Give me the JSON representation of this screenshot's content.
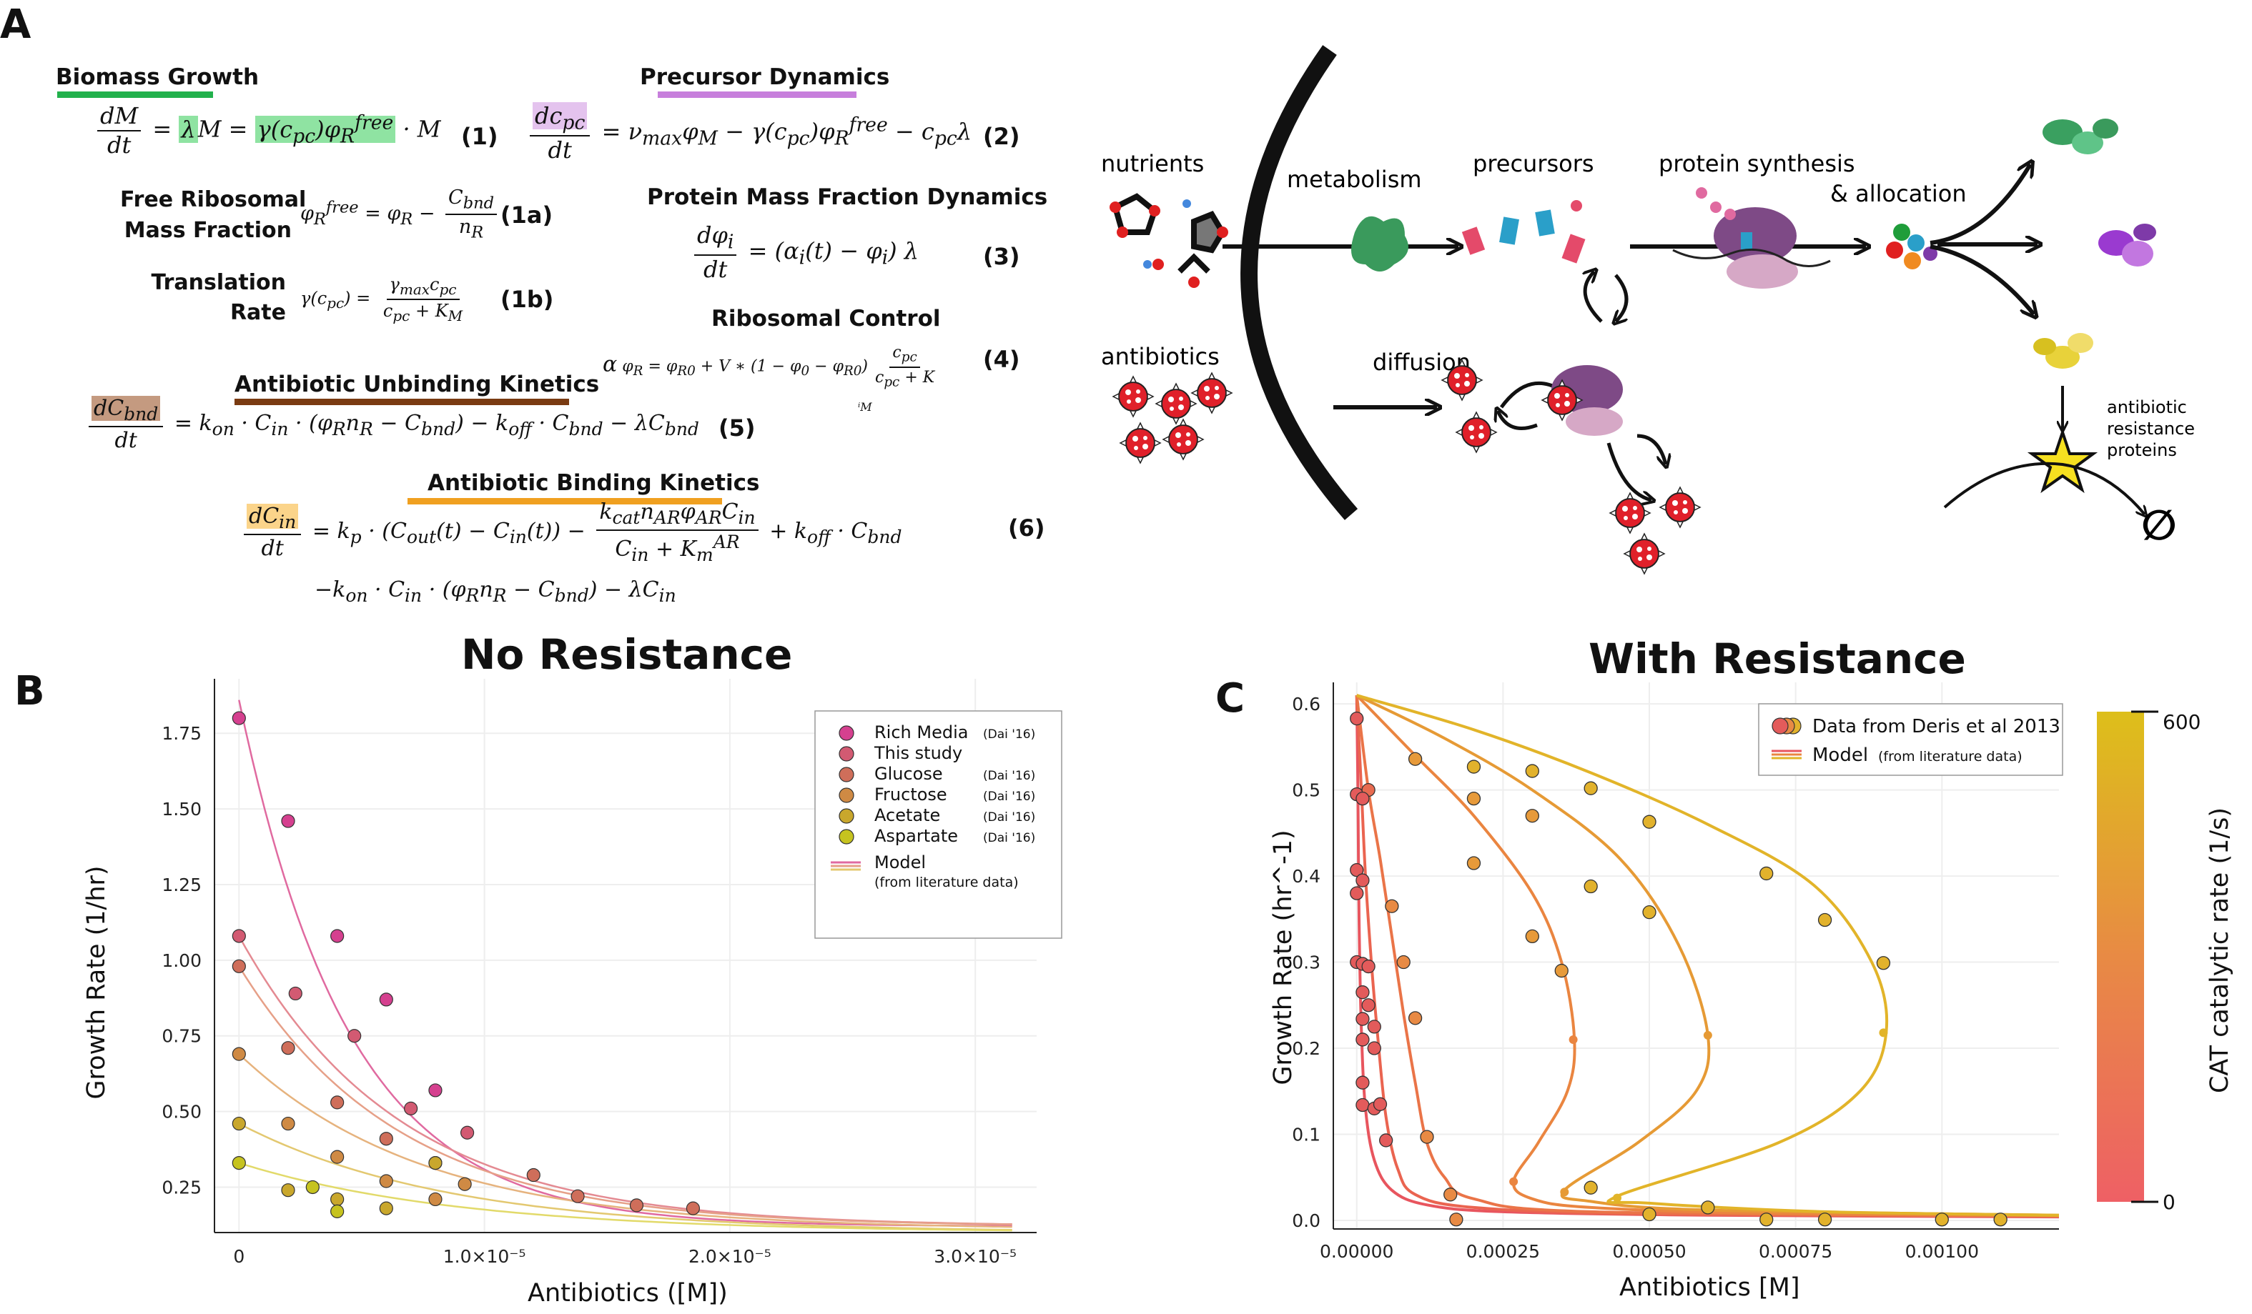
{
  "panels": {
    "a": "A",
    "b": "B",
    "c": "C"
  },
  "colors": {
    "biomass": "#22b14c",
    "precursor": "#c77fdc",
    "unbinding": "#7a3b12",
    "binding": "#f0a020"
  },
  "equations": {
    "biomass_header": "Biomass Growth",
    "eq1_num": "(1)",
    "free_ribo_label_1": "Free Ribosomal",
    "free_ribo_label_2": "Mass Fraction",
    "eq1a_num": "(1a)",
    "translation_label_1": "Translation",
    "translation_label_2": "Rate",
    "eq1b_num": "(1b)",
    "precursor_header": "Precursor Dynamics",
    "eq2_num": "(2)",
    "protein_header": "Protein Mass Fraction Dynamics",
    "eq3_num": "(3)",
    "ribosomal_header": "Ribosomal Control",
    "eq4_num": "(4)",
    "alpha": "α",
    "stray_m": "ⁱM",
    "unbinding_header": "Antibiotic Unbinding Kinetics",
    "eq5_num": "(5)",
    "binding_header": "Antibiotic Binding Kinetics",
    "eq6_num": "(6)"
  },
  "diagram": {
    "nutrients": "nutrients",
    "metabolism": "metabolism",
    "precursors": "precursors",
    "protein_synthesis": "protein synthesis",
    "allocation": "& allocation",
    "antibiotics": "antibiotics",
    "diffusion": "diffusion",
    "resistance_1": "antibiotic",
    "resistance_2": "resistance",
    "resistance_3": "proteins",
    "empty_set": "∅"
  },
  "chart_data": [
    {
      "type": "scatter",
      "title": "No Resistance",
      "xlabel": "Antibiotics ([M])",
      "ylabel": "Growth Rate (1/hr)",
      "xlim": [
        -1e-06,
        3.25e-05
      ],
      "ylim": [
        0.1,
        1.93
      ],
      "xticks": [
        0,
        1e-05,
        2e-05,
        3e-05
      ],
      "xtick_labels": [
        "0",
        "1.0×10⁻⁵",
        "2.0×10⁻⁵",
        "3.0×10⁻⁵"
      ],
      "yticks": [
        0.25,
        0.5,
        0.75,
        1.0,
        1.25,
        1.5,
        1.75
      ],
      "ytick_labels": [
        "0.25",
        "0.50",
        "0.75",
        "1.00",
        "1.25",
        "1.50",
        "1.75"
      ],
      "grid": true,
      "legend_position": "top-right",
      "series": [
        {
          "name": "Rich Media",
          "tag": "(Dai '16)",
          "color": "#d5408f",
          "x": [
            0,
            2e-06,
            4e-06,
            6e-06,
            8e-06
          ],
          "y": [
            1.8,
            1.46,
            1.08,
            0.87,
            0.57
          ]
        },
        {
          "name": "This study",
          "tag": "",
          "color": "#d25a72",
          "x": [
            0,
            2.3e-06,
            4.7e-06,
            7e-06,
            9.3e-06
          ],
          "y": [
            1.08,
            0.89,
            0.75,
            0.51,
            0.43
          ]
        },
        {
          "name": "Glucose",
          "tag": "(Dai '16)",
          "color": "#cf6e5a",
          "x": [
            0,
            2e-06,
            4e-06,
            6e-06,
            8e-06,
            1.2e-05,
            1.38e-05,
            1.62e-05,
            1.85e-05
          ],
          "y": [
            0.98,
            0.71,
            0.53,
            0.41,
            0.33,
            0.29,
            0.22,
            0.19,
            0.18
          ]
        },
        {
          "name": "Fructose",
          "tag": "(Dai '16)",
          "color": "#cf8a44",
          "x": [
            0,
            2e-06,
            4e-06,
            6e-06,
            8e-06,
            9.2e-06
          ],
          "y": [
            0.69,
            0.46,
            0.35,
            0.27,
            0.21,
            0.26
          ]
        },
        {
          "name": "Acetate",
          "tag": "(Dai '16)",
          "color": "#c9a72c",
          "x": [
            0,
            2e-06,
            4e-06,
            6e-06,
            8e-06
          ],
          "y": [
            0.46,
            0.24,
            0.21,
            0.18,
            0.33
          ]
        },
        {
          "name": "Aspartate",
          "tag": "(Dai '16)",
          "color": "#c6c31f",
          "x": [
            0,
            3e-06,
            4e-06
          ],
          "y": [
            0.33,
            0.25,
            0.17
          ]
        }
      ],
      "model_label_1": "Model",
      "model_label_2": "(from literature data)",
      "model_curves": [
        {
          "color": "#e06aa0",
          "y0": 1.86,
          "floor": 0.12,
          "scale": 4.5e-06
        },
        {
          "color": "#e48a92",
          "y0": 1.08,
          "floor": 0.12,
          "scale": 6.5e-06
        },
        {
          "color": "#e6a088",
          "y0": 0.98,
          "floor": 0.12,
          "scale": 6.5e-06
        },
        {
          "color": "#e6b37e",
          "y0": 0.69,
          "floor": 0.11,
          "scale": 7.5e-06
        },
        {
          "color": "#e3c870",
          "y0": 0.46,
          "floor": 0.1,
          "scale": 8.5e-06
        },
        {
          "color": "#e2da6a",
          "y0": 0.33,
          "floor": 0.1,
          "scale": 9e-06
        }
      ]
    },
    {
      "type": "scatter",
      "title": "With Resistance",
      "xlabel": "Antibiotics [M]",
      "ylabel": "Growth Rate (hr^-1)",
      "xlim": [
        -4e-05,
        0.0012
      ],
      "ylim": [
        -0.01,
        0.625
      ],
      "xticks": [
        0,
        0.00025,
        0.0005,
        0.00075,
        0.001
      ],
      "xtick_labels": [
        "0.00000",
        "0.00025",
        "0.00050",
        "0.00075",
        "0.00100"
      ],
      "yticks": [
        0,
        0.1,
        0.2,
        0.3,
        0.4,
        0.5,
        0.6
      ],
      "ytick_labels": [
        "0.0",
        "0.1",
        "0.2",
        "0.3",
        "0.4",
        "0.5",
        "0.6"
      ],
      "grid": true,
      "legend_position": "top-right",
      "legend_data": "Data from Deris et al 2013",
      "legend_model_1": "Model",
      "legend_model_2": "(from literature data)",
      "colorbar_label": "CAT catalytic rate (1/s)",
      "colorbar_ticks": [
        "0",
        "600"
      ],
      "points": [
        {
          "x": 0,
          "y": 0.583,
          "c": "#e35b5b"
        },
        {
          "x": 0,
          "y": 0.495,
          "c": "#e35b5b"
        },
        {
          "x": 2e-05,
          "y": 0.5,
          "c": "#e86b50"
        },
        {
          "x": 1e-05,
          "y": 0.49,
          "c": "#e35b5b"
        },
        {
          "x": 0,
          "y": 0.407,
          "c": "#e35b5b"
        },
        {
          "x": 1e-05,
          "y": 0.395,
          "c": "#e35b5b"
        },
        {
          "x": 0,
          "y": 0.38,
          "c": "#e35b5b"
        },
        {
          "x": 0,
          "y": 0.3,
          "c": "#e35b5b"
        },
        {
          "x": 1e-05,
          "y": 0.298,
          "c": "#e35b5b"
        },
        {
          "x": 2e-05,
          "y": 0.295,
          "c": "#e35b5b"
        },
        {
          "x": 1e-05,
          "y": 0.265,
          "c": "#e35b5b"
        },
        {
          "x": 2e-05,
          "y": 0.25,
          "c": "#e35b5b"
        },
        {
          "x": 1e-05,
          "y": 0.234,
          "c": "#e35b5b"
        },
        {
          "x": 3e-05,
          "y": 0.225,
          "c": "#e35b5b"
        },
        {
          "x": 1e-05,
          "y": 0.21,
          "c": "#e35b5b"
        },
        {
          "x": 3e-05,
          "y": 0.2,
          "c": "#e35b5b"
        },
        {
          "x": 1e-05,
          "y": 0.16,
          "c": "#e35b5b"
        },
        {
          "x": 1e-05,
          "y": 0.134,
          "c": "#e35b5b"
        },
        {
          "x": 3e-05,
          "y": 0.13,
          "c": "#e35b5b"
        },
        {
          "x": 4e-05,
          "y": 0.135,
          "c": "#e35b5b"
        },
        {
          "x": 5e-05,
          "y": 0.093,
          "c": "#e35b5b"
        },
        {
          "x": 8e-05,
          "y": 0.3,
          "c": "#e88a44"
        },
        {
          "x": 6e-05,
          "y": 0.365,
          "c": "#e88a44"
        },
        {
          "x": 0.0001,
          "y": 0.235,
          "c": "#e88a44"
        },
        {
          "x": 0.00012,
          "y": 0.097,
          "c": "#e88a44"
        },
        {
          "x": 0.00016,
          "y": 0.03,
          "c": "#e88a44"
        },
        {
          "x": 0.00017,
          "y": 0.001,
          "c": "#e88a44"
        },
        {
          "x": 0.0001,
          "y": 0.536,
          "c": "#e79a3a"
        },
        {
          "x": 0.0002,
          "y": 0.49,
          "c": "#e79a3a"
        },
        {
          "x": 0.0002,
          "y": 0.415,
          "c": "#e79a3a"
        },
        {
          "x": 0.0003,
          "y": 0.47,
          "c": "#e79a3a"
        },
        {
          "x": 0.0003,
          "y": 0.33,
          "c": "#e79a3a"
        },
        {
          "x": 0.00035,
          "y": 0.29,
          "c": "#e79a3a"
        },
        {
          "x": 0.0002,
          "y": 0.527,
          "c": "#e2b22c"
        },
        {
          "x": 0.0003,
          "y": 0.522,
          "c": "#e2b22c"
        },
        {
          "x": 0.0004,
          "y": 0.502,
          "c": "#e2b22c"
        },
        {
          "x": 0.0004,
          "y": 0.388,
          "c": "#e2b22c"
        },
        {
          "x": 0.0005,
          "y": 0.463,
          "c": "#e2b22c"
        },
        {
          "x": 0.0005,
          "y": 0.358,
          "c": "#e2b22c"
        },
        {
          "x": 0.0007,
          "y": 0.403,
          "c": "#e2b22c"
        },
        {
          "x": 0.0008,
          "y": 0.349,
          "c": "#e2b22c"
        },
        {
          "x": 0.0009,
          "y": 0.299,
          "c": "#e2b22c"
        },
        {
          "x": 0.0004,
          "y": 0.038,
          "c": "#e2b22c"
        },
        {
          "x": 0.0005,
          "y": 0.007,
          "c": "#e2b22c"
        },
        {
          "x": 0.0006,
          "y": 0.015,
          "c": "#e2b22c"
        },
        {
          "x": 0.0007,
          "y": 0.001,
          "c": "#e2b22c"
        },
        {
          "x": 0.0008,
          "y": 0.001,
          "c": "#e2b22c"
        },
        {
          "x": 0.001,
          "y": 0.001,
          "c": "#e2b22c"
        },
        {
          "x": 0.0011,
          "y": 0.001,
          "c": "#e2b22c"
        }
      ],
      "curves": [
        {
          "color": "#e8555e",
          "points": [
            [
              0,
              0.61
            ],
            [
              2e-06,
              0.5
            ],
            [
              4e-06,
              0.35
            ],
            [
              8e-06,
              0.22
            ],
            [
              1.5e-05,
              0.13
            ],
            [
              3e-05,
              0.07
            ],
            [
              6e-05,
              0.035
            ],
            [
              0.00012,
              0.018
            ],
            [
              0.00025,
              0.01
            ],
            [
              0.0006,
              0.006
            ],
            [
              0.0012,
              0.004
            ]
          ]
        },
        {
          "color": "#ea6450",
          "points": [
            [
              0,
              0.61
            ],
            [
              8e-06,
              0.5
            ],
            [
              1.5e-05,
              0.4
            ],
            [
              2.5e-05,
              0.3
            ],
            [
              3.5e-05,
              0.22
            ],
            [
              5e-05,
              0.12
            ],
            [
              7e-05,
              0.06
            ],
            [
              0.0001,
              0.03
            ],
            [
              0.0002,
              0.015
            ],
            [
              0.0005,
              0.007
            ],
            [
              0.0012,
              0.005
            ]
          ]
        },
        {
          "color": "#ea7448",
          "points": [
            [
              0,
              0.61
            ],
            [
              2e-05,
              0.5
            ],
            [
              4e-05,
              0.42
            ],
            [
              6e-05,
              0.33
            ],
            [
              8e-05,
              0.24
            ],
            [
              0.0001,
              0.16
            ],
            [
              0.00012,
              0.09
            ],
            [
              0.00015,
              0.05
            ],
            [
              0.0002,
              0.025
            ],
            [
              0.0004,
              0.01
            ],
            [
              0.0012,
              0.005
            ]
          ]
        },
        {
          "color": "#ea8540",
          "points": [
            [
              0,
              0.61
            ],
            [
              0.0001,
              0.54
            ],
            [
              0.0002,
              0.47
            ],
            [
              0.0003,
              0.38
            ],
            [
              0.00035,
              0.3
            ],
            [
              0.000372,
              0.21
            ],
            [
              0.00036,
              0.15
            ],
            [
              0.00031,
              0.09
            ],
            [
              0.000268,
              0.045
            ],
            [
              0.0003,
              0.025
            ],
            [
              0.0004,
              0.015
            ],
            [
              0.0007,
              0.008
            ],
            [
              0.0012,
              0.005
            ]
          ]
        },
        {
          "color": "#e69a35",
          "points": [
            [
              0,
              0.61
            ],
            [
              0.00015,
              0.56
            ],
            [
              0.0003,
              0.5
            ],
            [
              0.00045,
              0.42
            ],
            [
              0.00055,
              0.32
            ],
            [
              0.0006,
              0.215
            ],
            [
              0.00058,
              0.15
            ],
            [
              0.00048,
              0.09
            ],
            [
              0.000355,
              0.035
            ],
            [
              0.0004,
              0.022
            ],
            [
              0.0006,
              0.012
            ],
            [
              0.0012,
              0.006
            ]
          ]
        },
        {
          "color": "#e2b429",
          "points": [
            [
              0,
              0.61
            ],
            [
              0.0002,
              0.57
            ],
            [
              0.0004,
              0.52
            ],
            [
              0.0006,
              0.46
            ],
            [
              0.00078,
              0.39
            ],
            [
              0.00088,
              0.3
            ],
            [
              0.000905,
              0.22
            ],
            [
              0.00086,
              0.15
            ],
            [
              0.00072,
              0.09
            ],
            [
              0.000445,
              0.028
            ],
            [
              0.0005,
              0.02
            ],
            [
              0.0008,
              0.01
            ],
            [
              0.0012,
              0.006
            ]
          ]
        }
      ],
      "knees": [
        [
          0.00037,
          0.21
        ],
        [
          0.0006,
          0.215
        ],
        [
          0.0009,
          0.218
        ],
        [
          0.000268,
          0.045
        ],
        [
          0.000355,
          0.033
        ],
        [
          0.000445,
          0.026
        ]
      ]
    }
  ]
}
